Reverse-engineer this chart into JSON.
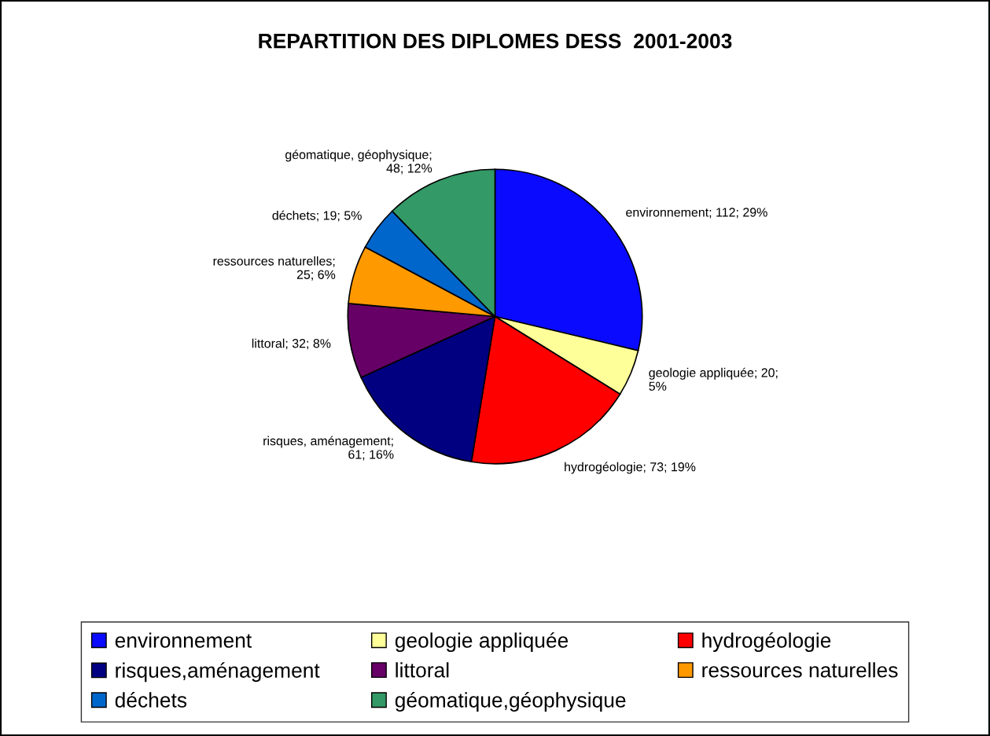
{
  "chart_data": {
    "type": "pie",
    "title": "REPARTITION DES DIPLOMES DESS  2001-2003",
    "categories": [
      "environnement",
      "geologie appliquée",
      "hydrogéologie",
      "risques,aménagement",
      "littoral",
      "ressources naturelles",
      "déchets",
      "géomatique,géophysique"
    ],
    "values": [
      112,
      20,
      73,
      61,
      32,
      25,
      19,
      48
    ],
    "colors": [
      "#0a0aff",
      "#ffff99",
      "#ff0000",
      "#000080",
      "#660066",
      "#ff9900",
      "#0066cc",
      "#339966"
    ],
    "value_labels": [
      "environnement; 112; 29%",
      "geologie appliquée; 20; 5%",
      "hydrogéologie; 73; 19%",
      "risques, aménagement; 61; 16%",
      "littoral; 32; 8%",
      "ressources naturelles; 25; 6%",
      "déchets; 19; 5%",
      "géomatique, géophysique; 48; 12%"
    ],
    "legend": "bottom"
  }
}
